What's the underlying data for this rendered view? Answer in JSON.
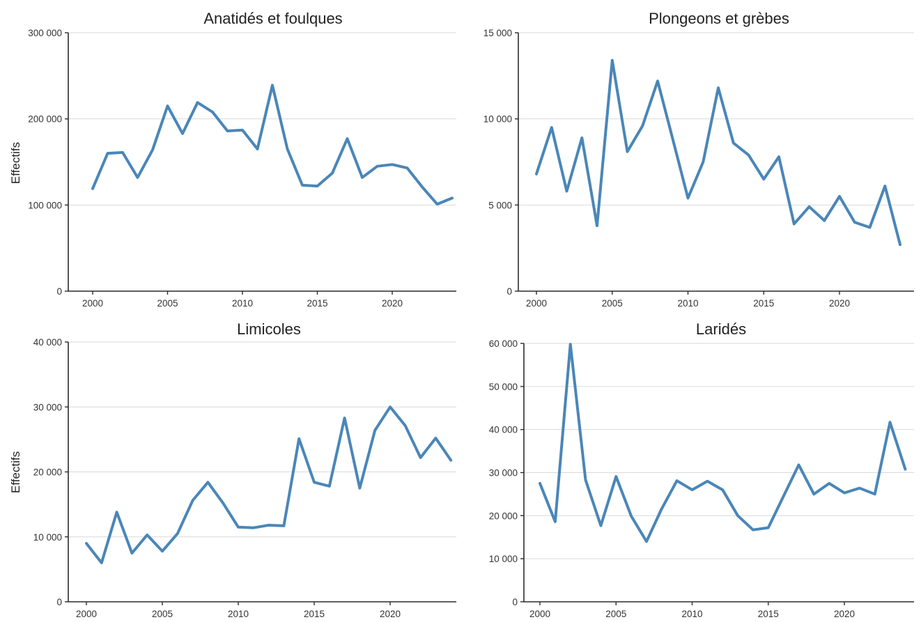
{
  "chart_data": [
    {
      "type": "line",
      "title": "Anatidés et foulques",
      "ylabel": "Effectifs",
      "ylim": [
        0,
        300000
      ],
      "yticks": [
        "0",
        "100 000",
        "200 000",
        "300 000"
      ],
      "xticks": [
        "2000",
        "2005",
        "2010",
        "2015",
        "2020"
      ],
      "grid": true,
      "color": "#4a86b8",
      "series": [
        {
          "x": [
            2000,
            2001,
            2002,
            2003,
            2004,
            2005,
            2006,
            2007,
            2008,
            2009,
            2010,
            2011,
            2012,
            2013,
            2014,
            2015,
            2016,
            2017,
            2018,
            2019,
            2020,
            2021,
            2022,
            2023,
            2024
          ],
          "values": [
            119000,
            160000,
            161000,
            132000,
            164000,
            215000,
            183000,
            219000,
            208000,
            186000,
            187000,
            165000,
            239000,
            165000,
            123000,
            122000,
            137000,
            177000,
            132000,
            145000,
            147000,
            143000,
            121000,
            101000,
            108000
          ]
        }
      ]
    },
    {
      "type": "line",
      "title": "Plongeons et grèbes",
      "ylabel": "",
      "ylim": [
        0,
        15000
      ],
      "yticks": [
        "0",
        "5 000",
        "10 000",
        "15 000"
      ],
      "xticks": [
        "2000",
        "2005",
        "2010",
        "2015",
        "2020"
      ],
      "grid": true,
      "color": "#4a86b8",
      "series": [
        {
          "x": [
            2000,
            2001,
            2002,
            2003,
            2004,
            2005,
            2006,
            2007,
            2008,
            2009,
            2010,
            2011,
            2012,
            2013,
            2014,
            2015,
            2016,
            2017,
            2018,
            2019,
            2020,
            2021,
            2022,
            2023,
            2024
          ],
          "values": [
            6800,
            9500,
            5800,
            8900,
            3800,
            13400,
            8100,
            9600,
            12200,
            8800,
            5400,
            7500,
            11800,
            8600,
            7900,
            6500,
            7800,
            3900,
            4900,
            4100,
            5500,
            4000,
            3700,
            6100,
            2700
          ]
        }
      ]
    },
    {
      "type": "line",
      "title": "Limicoles",
      "ylabel": "Effectifs",
      "ylim": [
        0,
        40000
      ],
      "yticks": [
        "0",
        "10 000",
        "20 000",
        "30 000",
        "40 000"
      ],
      "xticks": [
        "2000",
        "2005",
        "2010",
        "2015",
        "2020"
      ],
      "grid": true,
      "color": "#4a86b8",
      "series": [
        {
          "x": [
            2000,
            2001,
            2002,
            2003,
            2004,
            2005,
            2006,
            2007,
            2008,
            2009,
            2010,
            2011,
            2012,
            2013,
            2014,
            2015,
            2016,
            2017,
            2018,
            2019,
            2020,
            2021,
            2022,
            2023,
            2024
          ],
          "values": [
            9000,
            6000,
            13800,
            7500,
            10300,
            7800,
            10500,
            15600,
            18400,
            15200,
            11500,
            11400,
            11800,
            11700,
            25100,
            18400,
            17800,
            28300,
            17500,
            26400,
            30000,
            27100,
            22200,
            25200,
            21800
          ]
        }
      ]
    },
    {
      "type": "line",
      "title": "Laridés",
      "ylabel": "",
      "ylim": [
        0,
        60000
      ],
      "yticks": [
        "0",
        "10 000",
        "20 000",
        "30 000",
        "40 000",
        "50 000",
        "60 000"
      ],
      "xticks": [
        "2000",
        "2005",
        "2010",
        "2015",
        "2020"
      ],
      "grid": true,
      "color": "#4a86b8",
      "series": [
        {
          "x": [
            2000,
            2001,
            2002,
            2003,
            2004,
            2005,
            2006,
            2007,
            2008,
            2009,
            2010,
            2011,
            2012,
            2013,
            2014,
            2015,
            2016,
            2017,
            2018,
            2019,
            2020,
            2021,
            2022,
            2023,
            2024
          ],
          "values": [
            27500,
            18600,
            59800,
            28300,
            17700,
            29100,
            19900,
            14000,
            21600,
            28100,
            26000,
            28000,
            26000,
            20000,
            16700,
            17200,
            24500,
            31800,
            25000,
            27500,
            25300,
            26400,
            25000,
            41700,
            30800
          ]
        }
      ]
    }
  ]
}
